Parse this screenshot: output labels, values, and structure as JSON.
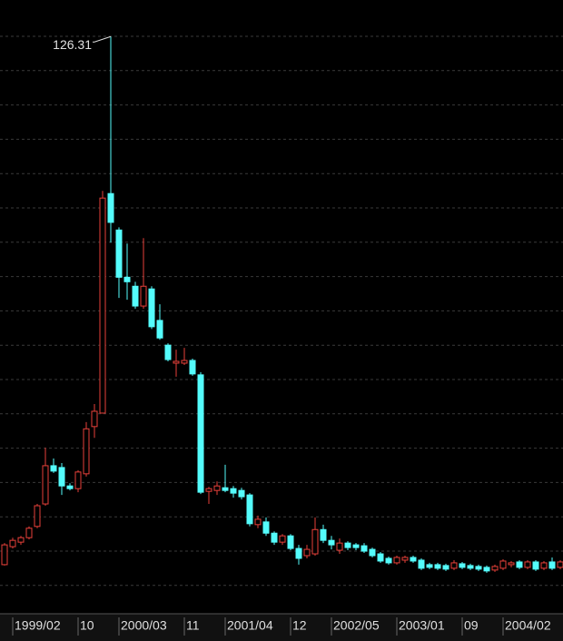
{
  "chart_data": {
    "type": "candlestick",
    "categories": [
      null,
      "1999/02",
      null,
      null,
      null,
      null,
      null,
      null,
      null,
      "10",
      null,
      null,
      null,
      null,
      "2000/03",
      null,
      null,
      null,
      null,
      null,
      null,
      null,
      "11",
      null,
      null,
      null,
      null,
      "2001/04",
      null,
      null,
      null,
      null,
      null,
      null,
      null,
      "12",
      null,
      null,
      null,
      null,
      "2002/05",
      null,
      null,
      null,
      null,
      null,
      null,
      null,
      "2003/01",
      null,
      null,
      null,
      null,
      null,
      null,
      null,
      "09",
      null,
      null,
      null,
      null,
      "2004/02",
      null,
      null,
      null,
      null,
      null,
      null,
      null
    ],
    "open": [
      8.9,
      12.9,
      13.9,
      14.9,
      17.4,
      22.4,
      30.9,
      30.5,
      26.4,
      25.8,
      29.1,
      39.6,
      42.6,
      91.4,
      83.3,
      72.8,
      70.8,
      66.4,
      70.2,
      63.2,
      57.7,
      53.7,
      53.7,
      54.3,
      51.1,
      25.2,
      25.4,
      26.0,
      25.8,
      25.4,
      24.4,
      17.8,
      18.4,
      15.9,
      13.9,
      15.3,
      12.5,
      10.9,
      11.3,
      16.7,
      14.3,
      12.1,
      13.7,
      13.3,
      13.1,
      12.3,
      11.3,
      10.3,
      9.3,
      9.9,
      10.5,
      9.9,
      8.9,
      8.9,
      8.7,
      8.1,
      9.1,
      8.7,
      8.5,
      8.3,
      7.7,
      8.1,
      8.9,
      9.5,
      8.3,
      9.5,
      8.1,
      9.5,
      8.3
    ],
    "high": [
      13.7,
      14.9,
      15.3,
      17.4,
      22.4,
      34.9,
      32.5,
      31.5,
      27.0,
      29.9,
      40.6,
      44.6,
      92.0,
      126.31,
      83.9,
      80.3,
      71.8,
      81.5,
      70.8,
      66.8,
      58.1,
      56.7,
      57.1,
      54.7,
      51.7,
      26.2,
      27.4,
      31.1,
      26.4,
      26.0,
      24.8,
      19.8,
      19.4,
      16.3,
      15.7,
      15.7,
      13.3,
      13.3,
      19.4,
      17.8,
      15.3,
      14.7,
      14.1,
      13.7,
      13.7,
      12.7,
      11.7,
      10.7,
      10.9,
      10.9,
      10.9,
      10.3,
      9.3,
      9.3,
      9.1,
      9.9,
      9.5,
      9.1,
      8.9,
      8.7,
      8.9,
      10.1,
      9.7,
      9.9,
      9.9,
      9.9,
      9.7,
      10.5,
      9.9
    ],
    "low": [
      8.7,
      12.5,
      13.3,
      14.5,
      17.0,
      22.0,
      29.3,
      24.4,
      25.4,
      25.0,
      28.5,
      37.1,
      42.6,
      80.5,
      68.2,
      67.8,
      65.8,
      65.8,
      61.3,
      58.9,
      54.1,
      50.7,
      53.3,
      50.9,
      24.6,
      22.4,
      24.4,
      25.0,
      23.8,
      23.4,
      17.4,
      17.0,
      15.3,
      13.3,
      13.3,
      12.1,
      8.9,
      10.3,
      10.9,
      13.7,
      12.3,
      11.3,
      12.1,
      12.1,
      11.5,
      10.5,
      9.3,
      8.9,
      8.9,
      9.3,
      9.3,
      7.7,
      7.9,
      7.7,
      7.5,
      7.7,
      7.9,
      7.7,
      7.5,
      7.1,
      7.3,
      7.7,
      8.3,
      7.9,
      7.9,
      7.5,
      7.7,
      7.7,
      7.9
    ],
    "close": [
      13.3,
      14.3,
      14.9,
      17.0,
      22.0,
      30.9,
      29.7,
      26.4,
      25.8,
      29.5,
      39.1,
      43.0,
      90.4,
      85.0,
      72.8,
      71.8,
      66.4,
      70.8,
      61.8,
      59.3,
      54.5,
      54.1,
      54.3,
      51.3,
      25.0,
      25.8,
      26.4,
      25.4,
      24.8,
      24.0,
      18.0,
      19.0,
      15.9,
      13.9,
      15.3,
      12.5,
      10.3,
      12.3,
      16.7,
      14.3,
      13.3,
      13.7,
      12.7,
      12.7,
      11.9,
      10.9,
      9.7,
      9.3,
      10.5,
      10.5,
      9.7,
      8.1,
      8.3,
      8.1,
      7.9,
      9.3,
      8.3,
      8.1,
      7.9,
      7.5,
      8.5,
      9.7,
      9.3,
      8.3,
      9.5,
      7.9,
      9.3,
      8.1,
      9.5
    ],
    "ylim": [
      0,
      130
    ],
    "up_color": "#e8413a",
    "down_color": "#54fcfc",
    "grid": true
  }
}
